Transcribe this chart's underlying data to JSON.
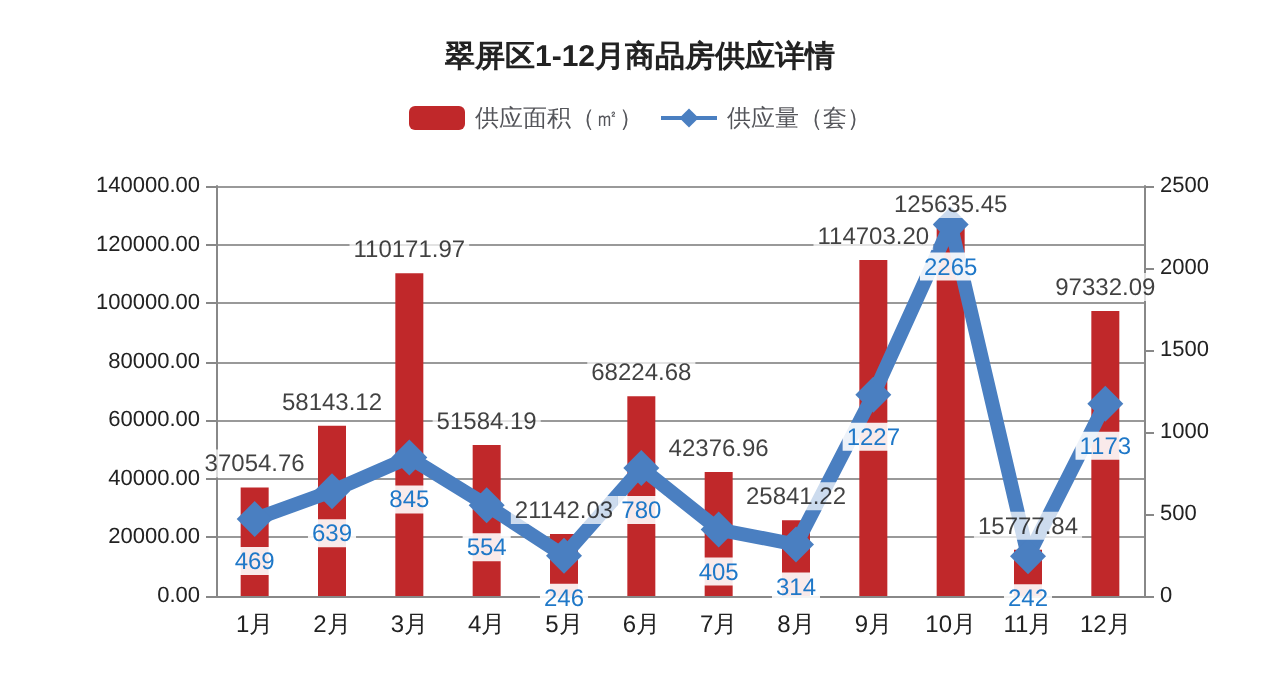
{
  "chart_data": {
    "type": "bar",
    "title": "翠屏区1-12月商品房供应详情",
    "categories": [
      "1月",
      "2月",
      "3月",
      "4月",
      "5月",
      "6月",
      "7月",
      "8月",
      "9月",
      "10月",
      "11月",
      "12月"
    ],
    "series": [
      {
        "name": "供应面积（㎡）",
        "type": "bar",
        "color": "#c0282a",
        "values": [
          37054.76,
          58143.12,
          110171.97,
          51584.19,
          21142.03,
          68224.68,
          42376.96,
          25841.22,
          114703.2,
          125635.45,
          15777.84,
          97332.09
        ],
        "value_labels": [
          "37054.76",
          "58143.12",
          "110171.97",
          "51584.19",
          "21142.03",
          "68224.68",
          "42376.96",
          "25841.22",
          "114703.20",
          "125635.45",
          "15777.84",
          "97332.09"
        ]
      },
      {
        "name": "供应量（套）",
        "type": "line",
        "axis": "y2",
        "color": "#4a7fc1",
        "values": [
          469,
          639,
          845,
          554,
          246,
          780,
          405,
          314,
          1227,
          2265,
          242,
          1173
        ],
        "value_labels": [
          "469",
          "639",
          "845",
          "554",
          "246",
          "780",
          "405",
          "314",
          "1227",
          "2265",
          "242",
          "1173"
        ]
      }
    ],
    "ylim": [
      0,
      140000
    ],
    "yticks": [
      {
        "value": 0,
        "label": "0.00"
      },
      {
        "value": 20000,
        "label": "20000.00"
      },
      {
        "value": 40000,
        "label": "40000.00"
      },
      {
        "value": 60000,
        "label": "60000.00"
      },
      {
        "value": 80000,
        "label": "80000.00"
      },
      {
        "value": 100000,
        "label": "100000.00"
      },
      {
        "value": 120000,
        "label": "120000.00"
      },
      {
        "value": 140000,
        "label": "140000.00"
      }
    ],
    "y2lim": [
      0,
      2500
    ],
    "y2ticks": [
      0,
      500,
      1000,
      1500,
      2000,
      2500
    ],
    "grid": "y",
    "legend": "top",
    "marker": "diamond"
  }
}
